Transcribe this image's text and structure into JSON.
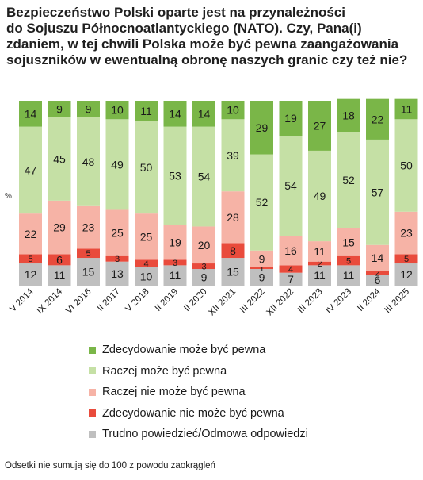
{
  "title_lines": [
    "Bezpieczeństwo Polski oparte jest na przynależności",
    "do Sojuszu Północnoatlantyckiego (NATO). Czy, Pana(i)",
    "zdaniem, w tej chwili Polska może być pewna zaangażowania",
    "sojuszników w ewentualną obronę naszych granic czy też nie?"
  ],
  "footnote": "Odsetki nie sumują się do 100 z powodu zaokrągleń",
  "chart_data": {
    "type": "bar",
    "stacked": true,
    "ylabel": "%",
    "categories": [
      "V 2014",
      "IX 2014",
      "VI 2016",
      "II 2017",
      "V 2018",
      "II 2019",
      "II 2020",
      "XII 2021",
      "III 2022",
      "XII 2022",
      "III 2023",
      "IV 2023",
      "II 2024",
      "III 2025"
    ],
    "series": [
      {
        "name": "Trudno powiedzieć/Odmowa odpowiedzi",
        "color": "#bfbfbf",
        "values": [
          12,
          11,
          15,
          13,
          10,
          11,
          9,
          15,
          9,
          7,
          11,
          11,
          6,
          12
        ]
      },
      {
        "name": "Zdecydowanie nie może być pewna",
        "color": "#e94b3c",
        "values": [
          5,
          6,
          5,
          3,
          4,
          3,
          3,
          8,
          1,
          4,
          2,
          5,
          2,
          5
        ]
      },
      {
        "name": "Raczej nie może być pewna",
        "color": "#f6b3a6",
        "values": [
          22,
          29,
          23,
          25,
          25,
          19,
          20,
          28,
          9,
          16,
          11,
          15,
          14,
          23
        ]
      },
      {
        "name": "Raczej może być pewna",
        "color": "#c5e0a5",
        "values": [
          47,
          45,
          48,
          49,
          50,
          53,
          54,
          39,
          52,
          54,
          49,
          52,
          57,
          50
        ]
      },
      {
        "name": "Zdecydowanie może być pewna",
        "color": "#7ab648",
        "values": [
          14,
          9,
          9,
          10,
          11,
          14,
          14,
          10,
          29,
          19,
          27,
          18,
          22,
          11
        ]
      }
    ],
    "legend_order": [
      "Zdecydowanie może być pewna",
      "Raczej może być pewna",
      "Raczej nie może być pewna",
      "Zdecydowanie nie może być pewna",
      "Trudno powiedzieć/Odmowa odpowiedzi"
    ],
    "legend_placement": "bottom",
    "grid": false
  }
}
